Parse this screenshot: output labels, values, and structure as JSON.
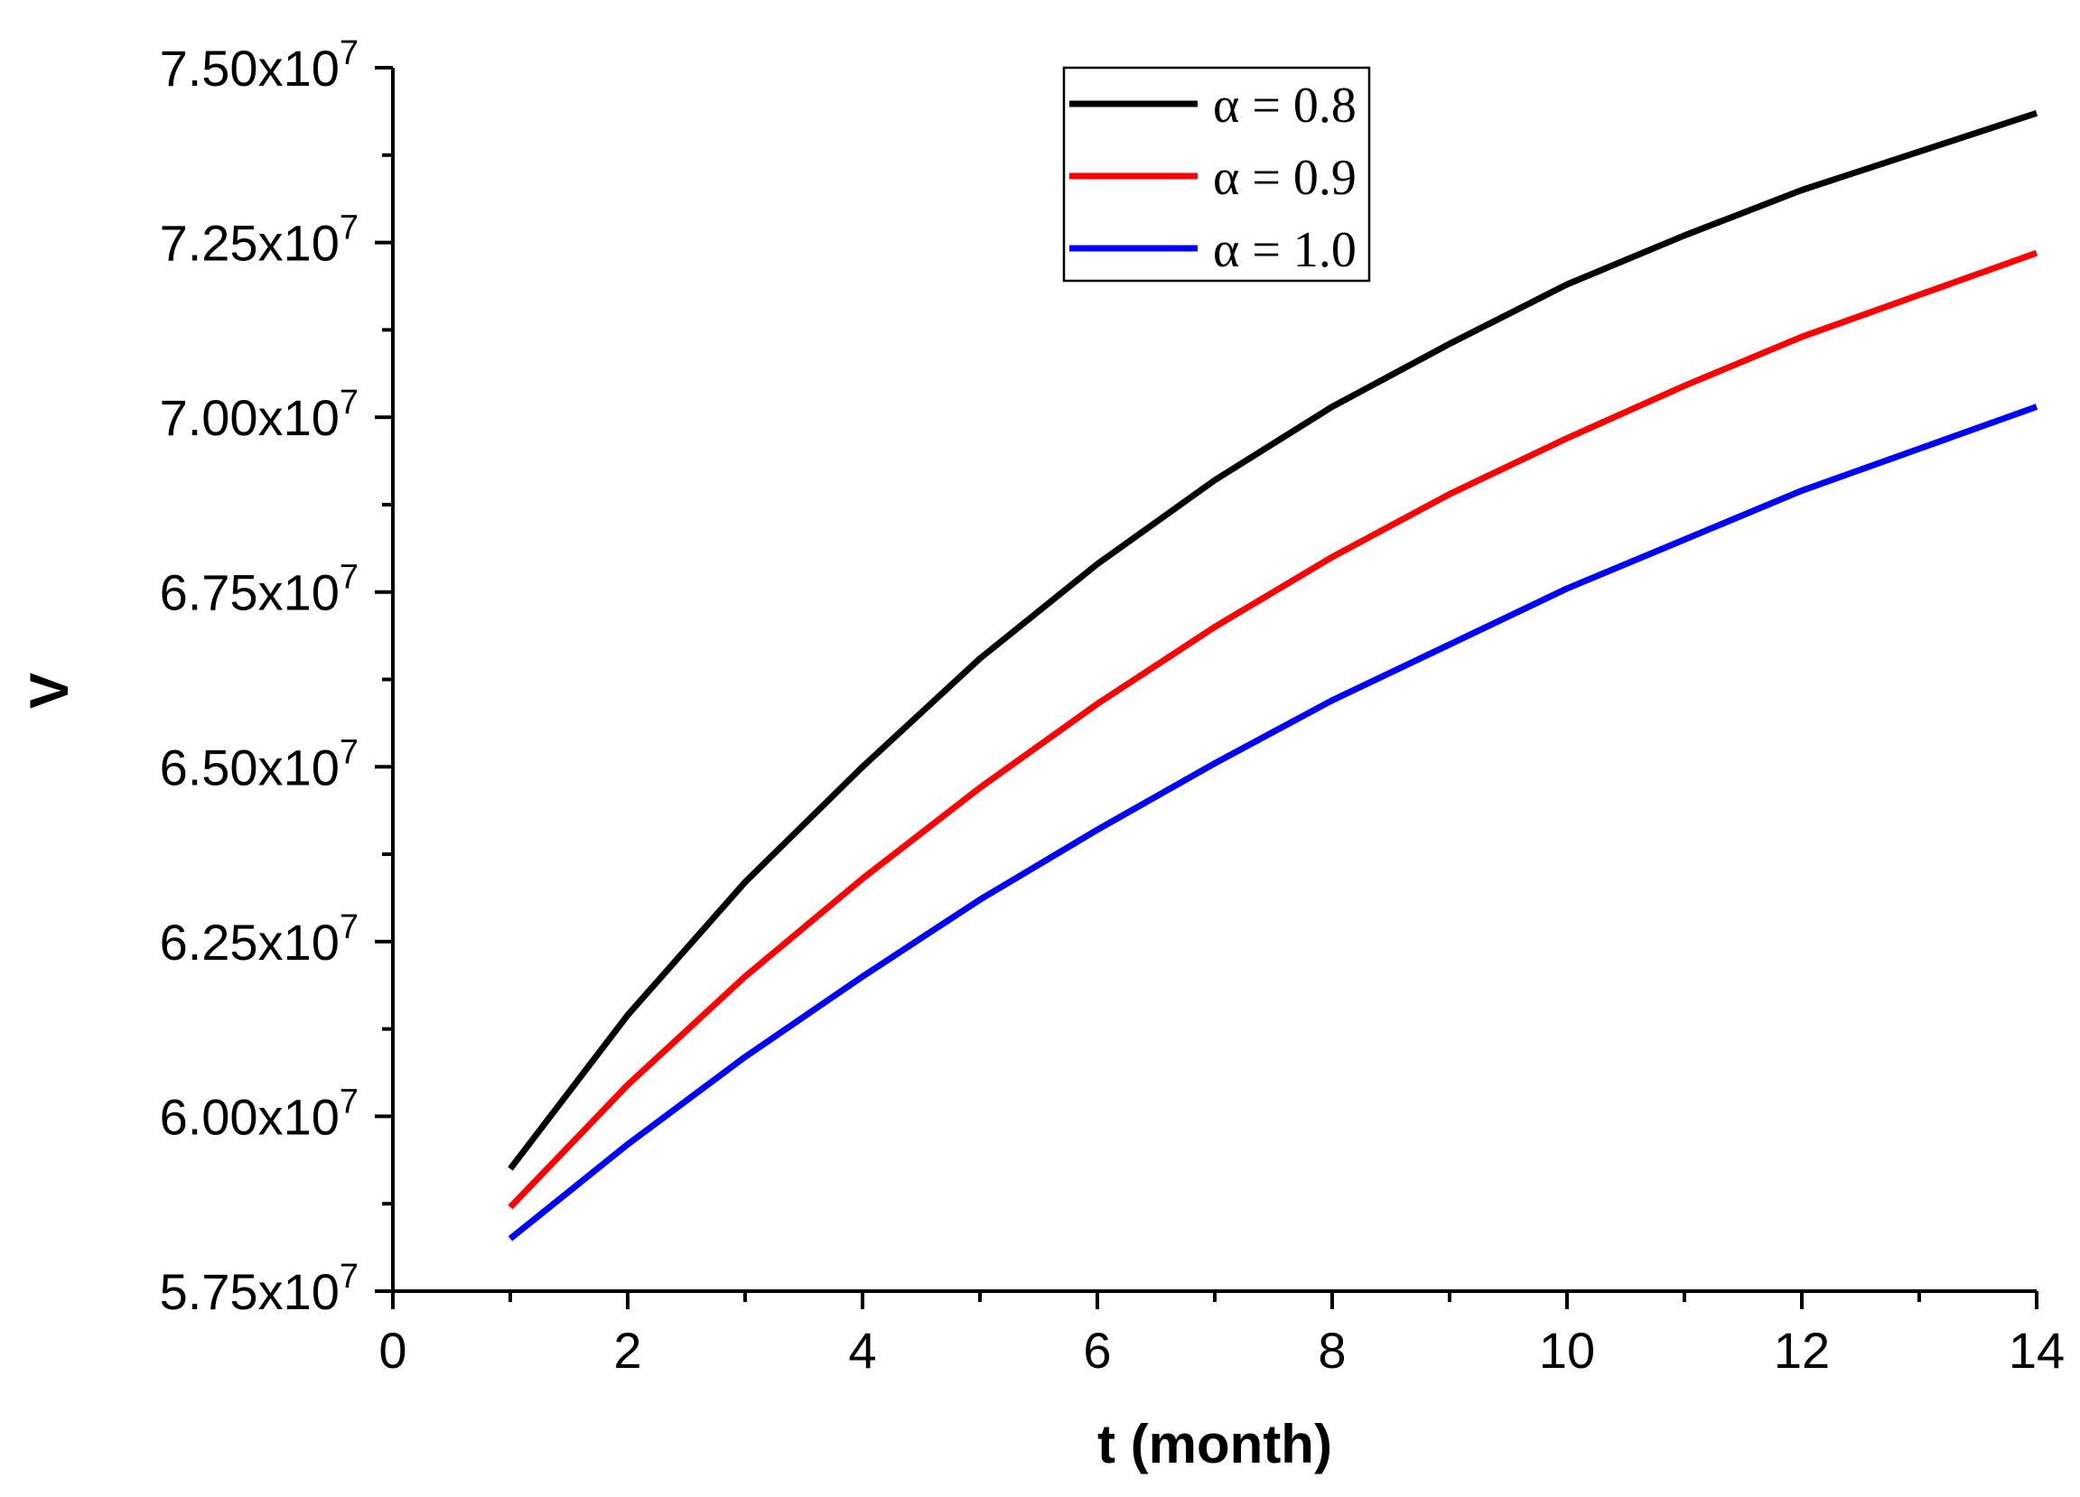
{
  "chart_data": {
    "type": "line",
    "title": "",
    "xlabel": "t  (month)",
    "ylabel": "V",
    "xlim": [
      0,
      14
    ],
    "ylim": [
      57500000,
      75000000
    ],
    "x_ticks": [
      0,
      2,
      4,
      6,
      8,
      10,
      12,
      14
    ],
    "x_tick_labels": [
      "0",
      "2",
      "4",
      "6",
      "8",
      "10",
      "12",
      "14"
    ],
    "y_ticks": [
      57500000,
      60000000,
      62500000,
      65000000,
      67500000,
      70000000,
      72500000,
      75000000
    ],
    "y_tick_labels": [
      {
        "mantissa": "5.75x10",
        "exponent": "7"
      },
      {
        "mantissa": "6.00x10",
        "exponent": "7"
      },
      {
        "mantissa": "6.25x10",
        "exponent": "7"
      },
      {
        "mantissa": "6.50x10",
        "exponent": "7"
      },
      {
        "mantissa": "6.75x10",
        "exponent": "7"
      },
      {
        "mantissa": "7.00x10",
        "exponent": "7"
      },
      {
        "mantissa": "7.25x10",
        "exponent": "7"
      },
      {
        "mantissa": "7.50x10",
        "exponent": "7"
      }
    ],
    "grid": false,
    "legend_position": "top-center",
    "x": [
      1,
      2,
      3,
      4,
      5,
      6,
      7,
      8,
      9,
      10,
      11,
      12,
      13,
      14
    ],
    "series": [
      {
        "name": "α = 0.8",
        "color": "#000000",
        "values": [
          59250000,
          61450000,
          63350000,
          65000000,
          66550000,
          67900000,
          69100000,
          70150000,
          71050000,
          71900000,
          72600000,
          73250000,
          73800000,
          74350000
        ]
      },
      {
        "name": "α = 0.9",
        "color": "#ff0000",
        "values": [
          58700000,
          60450000,
          62000000,
          63400000,
          64700000,
          65900000,
          67000000,
          68000000,
          68900000,
          69700000,
          70450000,
          71150000,
          71750000,
          72350000
        ]
      },
      {
        "name": "α = 1.0",
        "color": "#0000ff",
        "values": [
          58250000,
          59600000,
          60850000,
          62000000,
          63100000,
          64100000,
          65050000,
          65950000,
          66750000,
          67550000,
          68250000,
          68950000,
          69550000,
          70150000
        ]
      }
    ]
  }
}
